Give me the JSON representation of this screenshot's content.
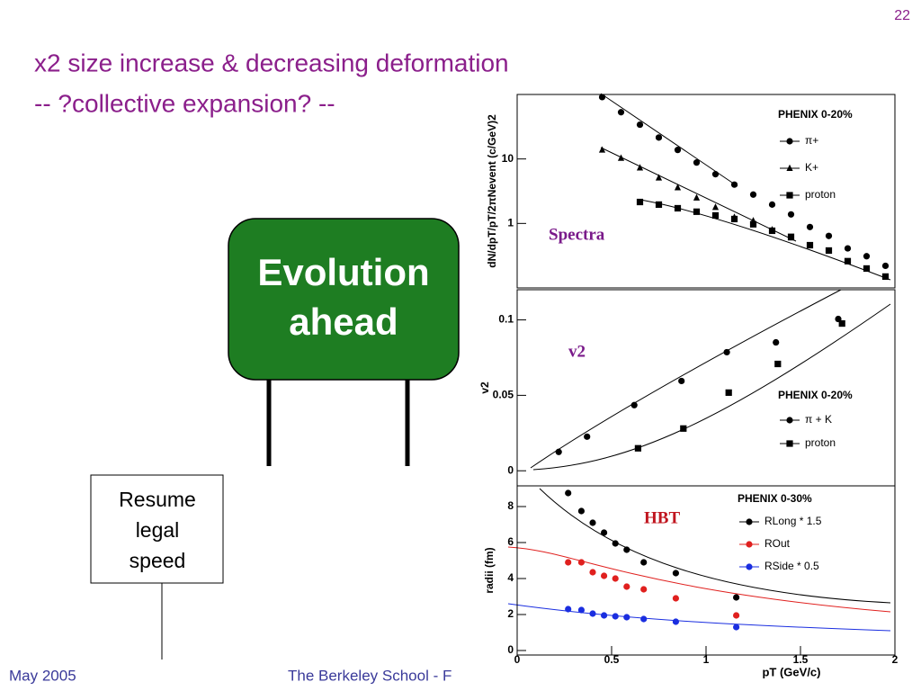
{
  "slide": {
    "page_number": "22",
    "title_lines": [
      "x2 size increase & decreasing deformation",
      "-- ?collective expansion? --"
    ],
    "sign_lines": [
      "Evolution",
      "ahead"
    ],
    "box_lines": [
      "Resume",
      "legal",
      "speed"
    ],
    "footer_date": "May 2005",
    "footer_event": "The Berkeley School - F"
  },
  "chart_data": [
    {
      "type": "scatter",
      "annotation": "Spectra",
      "annotation_color": "#7a1a8a",
      "y_label": "dN/dpT/pT/2πNevent (c/GeV)2",
      "legend_title": "PHENIX 0-20%",
      "log_y": true,
      "xlim": [
        0,
        2
      ],
      "ylim": [
        0.1,
        100
      ],
      "yticks": [
        1,
        10
      ],
      "series": [
        {
          "name": "π+",
          "color": "#000000",
          "marker": "circle",
          "x": [
            0.45,
            0.55,
            0.65,
            0.75,
            0.85,
            0.95,
            1.05,
            1.15,
            1.25,
            1.35,
            1.45,
            1.55,
            1.65,
            1.75,
            1.85,
            1.95
          ],
          "values": [
            91,
            53,
            34,
            21.5,
            13.8,
            8.8,
            5.8,
            4.0,
            2.8,
            1.96,
            1.38,
            0.88,
            0.64,
            0.41,
            0.31,
            0.22
          ]
        },
        {
          "name": "K+",
          "color": "#000000",
          "marker": "triangle",
          "x": [
            0.45,
            0.55,
            0.65,
            0.75,
            0.85,
            0.95,
            1.05,
            1.15,
            1.25,
            1.35,
            1.45
          ],
          "values": [
            13.8,
            10.3,
            7.3,
            5.1,
            3.6,
            2.5,
            1.78,
            1.25,
            1.1,
            0.8,
            0.6
          ]
        },
        {
          "name": "proton",
          "color": "#000000",
          "marker": "square",
          "x": [
            0.65,
            0.75,
            0.85,
            0.95,
            1.05,
            1.15,
            1.25,
            1.35,
            1.45,
            1.55,
            1.65,
            1.75,
            1.85,
            1.95
          ],
          "values": [
            2.15,
            1.96,
            1.72,
            1.52,
            1.33,
            1.17,
            0.97,
            0.77,
            0.62,
            0.46,
            0.38,
            0.26,
            0.2,
            0.15
          ]
        }
      ]
    },
    {
      "type": "scatter",
      "annotation": "v2",
      "annotation_color": "#7a1a8a",
      "y_label": "v2",
      "legend_title": "PHENIX 0-20%",
      "xlim": [
        0,
        2
      ],
      "ylim": [
        -0.01,
        0.12
      ],
      "yticks": [
        0,
        0.05,
        0.1
      ],
      "series": [
        {
          "name": "π + K",
          "color": "#000000",
          "marker": "circle",
          "x": [
            0.22,
            0.37,
            0.62,
            0.87,
            1.11,
            1.37,
            1.7
          ],
          "values": [
            0.0125,
            0.0226,
            0.0435,
            0.0595,
            0.0786,
            0.0851,
            0.1006
          ]
        },
        {
          "name": "proton",
          "color": "#000000",
          "marker": "square",
          "x": [
            0.64,
            0.88,
            1.12,
            1.38,
            1.72
          ],
          "values": [
            0.0149,
            0.028,
            0.0518,
            0.0708,
            0.0976
          ]
        }
      ]
    },
    {
      "type": "scatter",
      "annotation": "HBT",
      "annotation_color": "#c0141e",
      "y_label": "radii (fm)",
      "x_label": "pT (GeV/c)",
      "legend_title": "PHENIX 0-30%",
      "xlim": [
        0,
        2
      ],
      "ylim": [
        -0.25,
        9.15
      ],
      "yticks": [
        0,
        2,
        4,
        6,
        8
      ],
      "xticks": [
        0,
        0.5,
        1,
        1.5,
        2
      ],
      "series": [
        {
          "name": "RLong * 1.5",
          "color": "#000000",
          "marker": "circle",
          "x": [
            0.27,
            0.34,
            0.4,
            0.46,
            0.52,
            0.58,
            0.67,
            0.84,
            1.16
          ],
          "values": [
            8.75,
            7.75,
            7.1,
            6.55,
            5.95,
            5.6,
            4.9,
            4.3,
            2.95
          ]
        },
        {
          "name": "ROut",
          "color": "#e0201e",
          "marker": "circle",
          "x": [
            0.27,
            0.34,
            0.4,
            0.46,
            0.52,
            0.58,
            0.67,
            0.84,
            1.16
          ],
          "values": [
            4.9,
            4.9,
            4.35,
            4.15,
            4.0,
            3.55,
            3.4,
            2.9,
            1.95
          ]
        },
        {
          "name": "RSide * 0.5",
          "color": "#1a2ee0",
          "marker": "circle",
          "x": [
            0.27,
            0.34,
            0.4,
            0.46,
            0.52,
            0.58,
            0.67,
            0.84,
            1.16
          ],
          "values": [
            2.3,
            2.25,
            2.05,
            1.95,
            1.9,
            1.85,
            1.75,
            1.6,
            1.3
          ]
        }
      ]
    }
  ]
}
